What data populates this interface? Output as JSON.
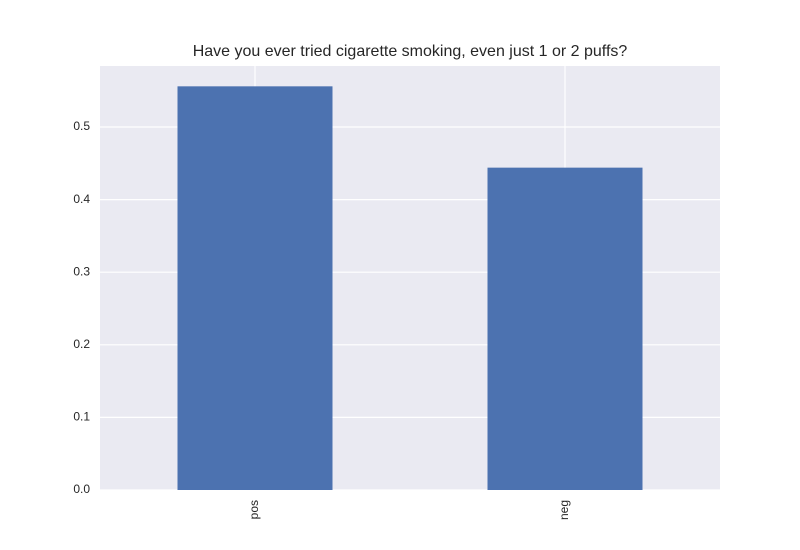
{
  "chart_data": {
    "type": "bar",
    "title": "Have you ever tried cigarette smoking, even just 1 or 2 puffs?",
    "categories": [
      "pos",
      "neg"
    ],
    "values": [
      0.556,
      0.444
    ],
    "color": "#4c72b0",
    "ylim": [
      0,
      0.584
    ],
    "yticks": [
      {
        "value": 0,
        "label": "0.0"
      },
      0.1,
      0.2,
      0.3,
      0.4,
      0.5
    ],
    "grid": true
  }
}
